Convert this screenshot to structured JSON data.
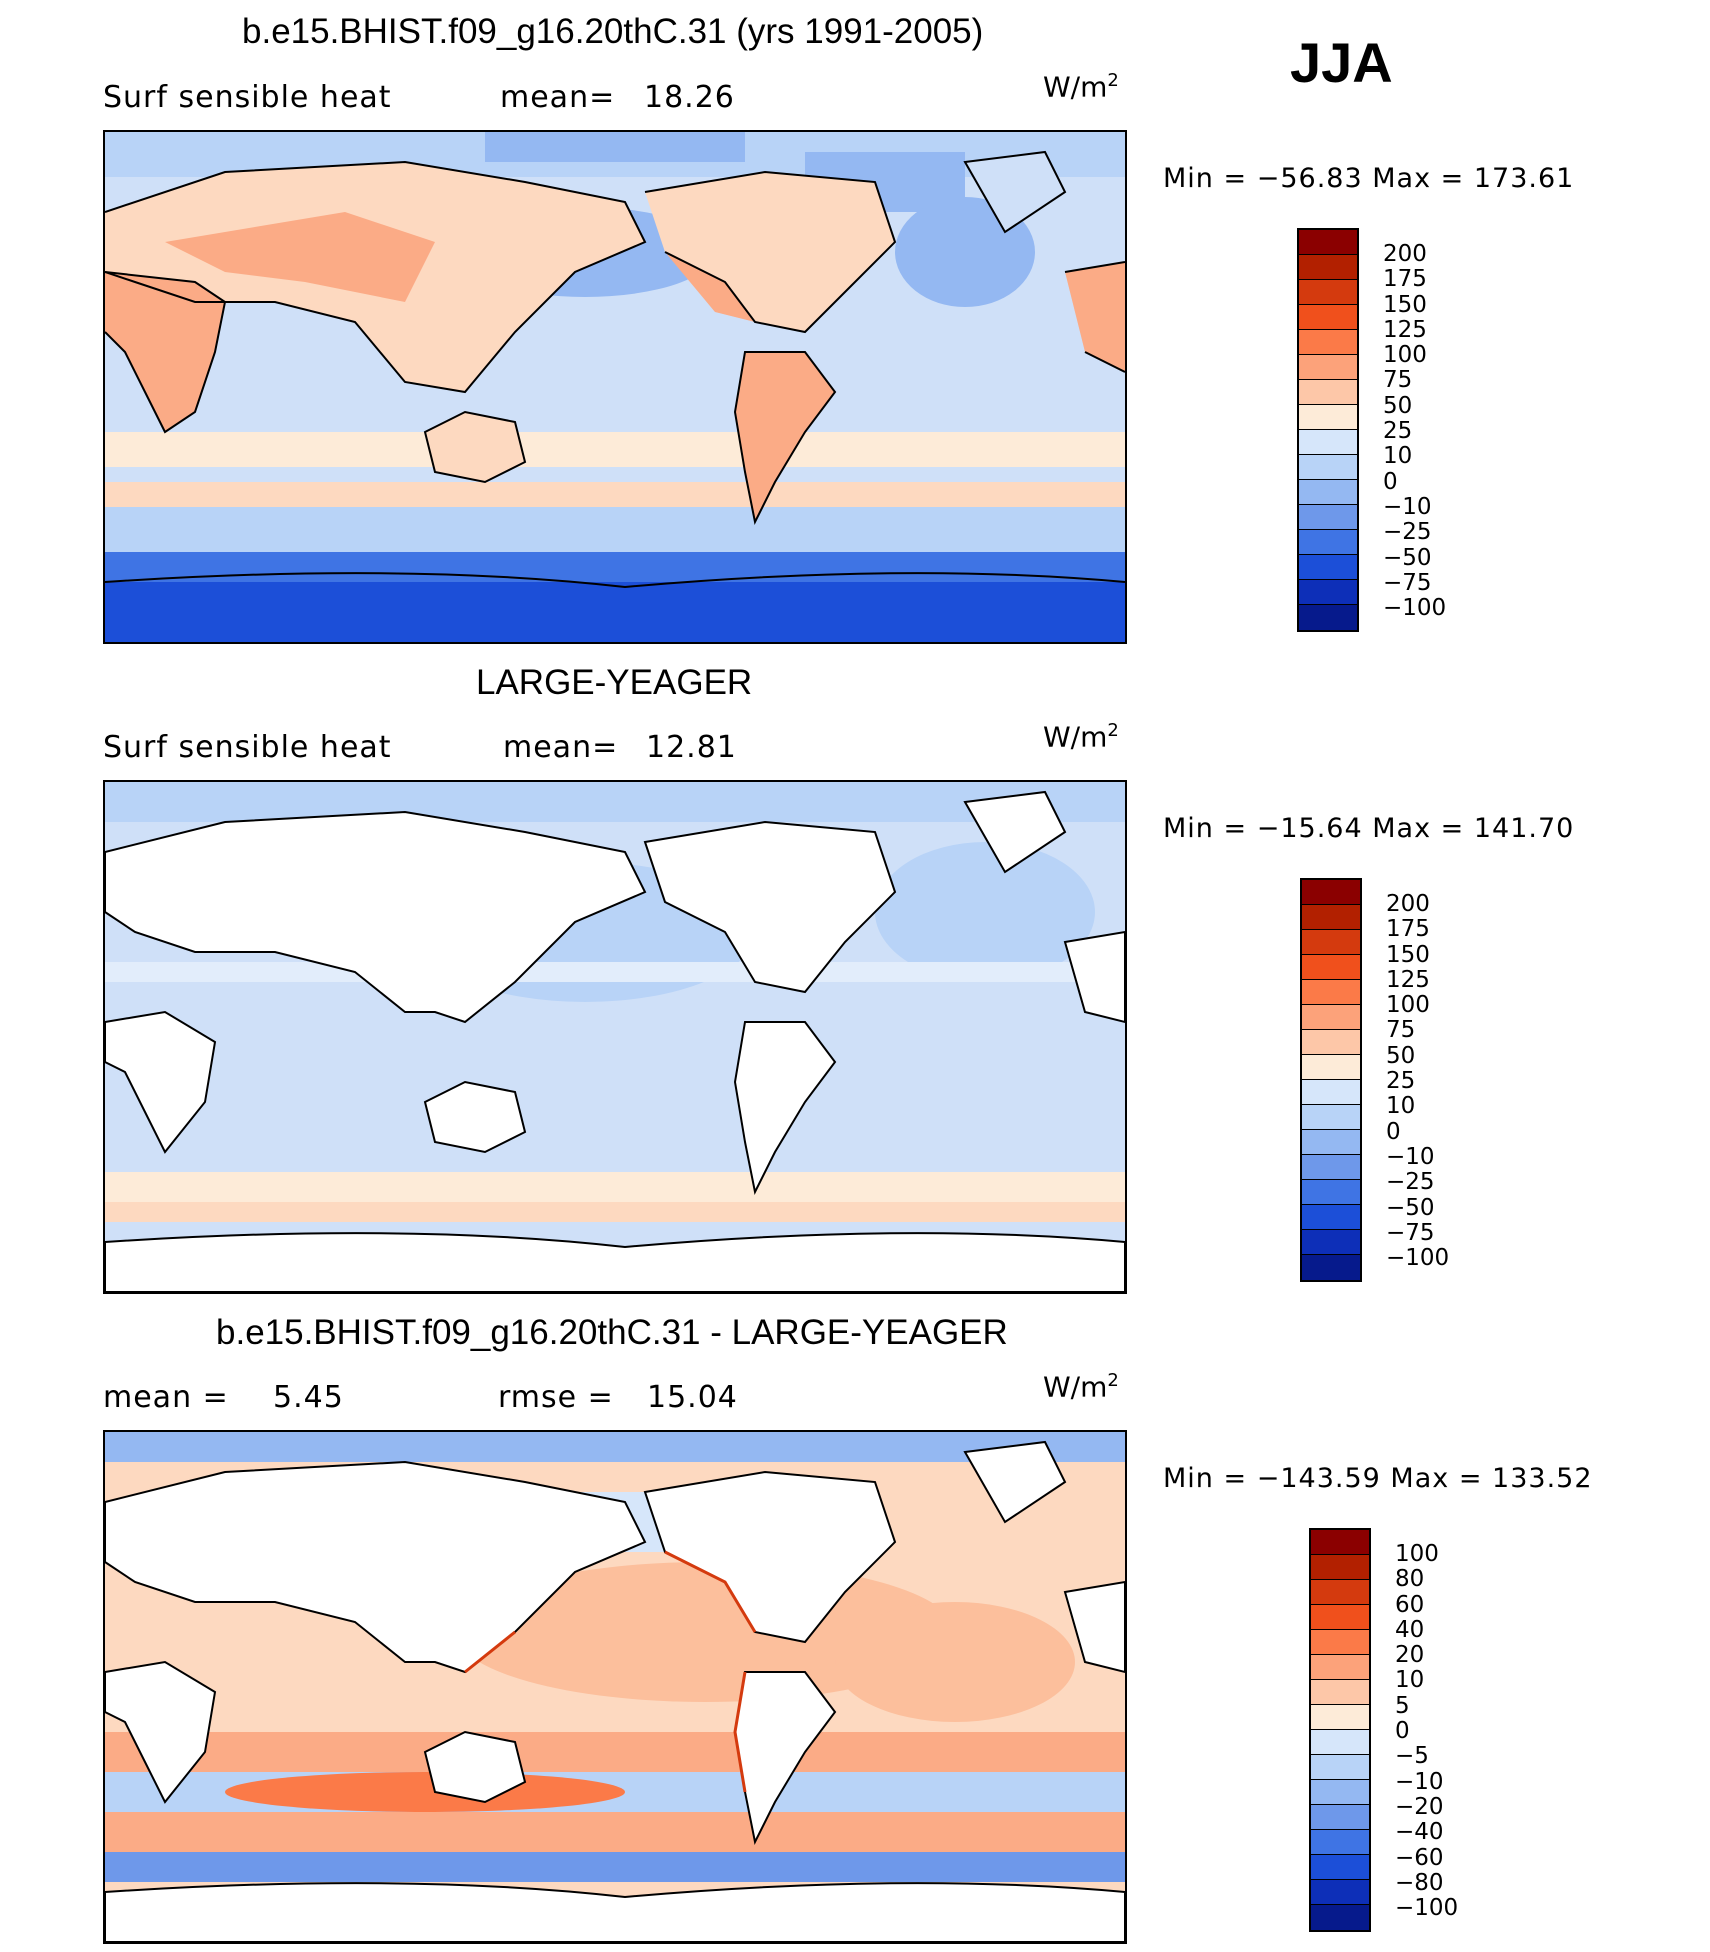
{
  "season": "JJA",
  "panels": [
    {
      "title": "b.e15.BHIST.f09_g16.20thC.31 (yrs 1991-2005)",
      "variable": "Surf  sensible  heat",
      "stat_label": "mean=",
      "stat_value": "18.26",
      "units": "W/m",
      "units_sup": "2",
      "min_label": "Min  =",
      "min_value": "−56.83",
      "max_label": "Max  =",
      "max_value": "173.61",
      "colorbar_labels": [
        "200",
        "175",
        "150",
        "125",
        "100",
        "75",
        "50",
        "25",
        "10",
        "0",
        "−10",
        "−25",
        "−50",
        "−75",
        "−100"
      ],
      "colorbar_colors": [
        "#8b0000",
        "#b22000",
        "#d43a0e",
        "#f0501c",
        "#fb7a48",
        "#fca27a",
        "#fdc7a8",
        "#fdebd8",
        "#d6e6fa",
        "#b8d3f7",
        "#94b8f2",
        "#6e98ea",
        "#3f74e4",
        "#1c4fd8",
        "#0d2fb8",
        "#061a8c"
      ]
    },
    {
      "title": "LARGE-YEAGER",
      "variable": "Surf  sensible  heat",
      "stat_label": "mean=",
      "stat_value": "12.81",
      "units": "W/m",
      "units_sup": "2",
      "min_label": "Min  =",
      "min_value": "−15.64",
      "max_label": "Max  =",
      "max_value": "141.70",
      "colorbar_labels": [
        "200",
        "175",
        "150",
        "125",
        "100",
        "75",
        "50",
        "25",
        "10",
        "0",
        "−10",
        "−25",
        "−50",
        "−75",
        "−100"
      ],
      "colorbar_colors": [
        "#8b0000",
        "#b22000",
        "#d43a0e",
        "#f0501c",
        "#fb7a48",
        "#fca27a",
        "#fdc7a8",
        "#fdebd8",
        "#d6e6fa",
        "#b8d3f7",
        "#94b8f2",
        "#6e98ea",
        "#3f74e4",
        "#1c4fd8",
        "#0d2fb8",
        "#061a8c"
      ]
    },
    {
      "title": "b.e15.BHIST.f09_g16.20thC.31 - LARGE-YEAGER",
      "variable": "mean  =",
      "stat_label": "rmse  =",
      "mean_value": "5.45",
      "stat_value": "15.04",
      "units": "W/m",
      "units_sup": "2",
      "min_label": "Min  =",
      "min_value": "−143.59",
      "max_label": "Max  =",
      "max_value": "133.52",
      "colorbar_labels": [
        "100",
        "80",
        "60",
        "40",
        "20",
        "10",
        "5",
        "0",
        "−5",
        "−10",
        "−20",
        "−40",
        "−60",
        "−80",
        "−100"
      ],
      "colorbar_colors": [
        "#8b0000",
        "#b22000",
        "#d43a0e",
        "#f0501c",
        "#fb7a48",
        "#fca27a",
        "#fdc7a8",
        "#fdebd8",
        "#d6e6fa",
        "#b8d3f7",
        "#94b8f2",
        "#6e98ea",
        "#3f74e4",
        "#1c4fd8",
        "#0d2fb8",
        "#061a8c"
      ]
    }
  ],
  "colors": {
    "land_white": "#ffffff",
    "ocean_light_blue": "#cfe0f8",
    "ocean_mid_blue": "#9cbcf0",
    "light_orange": "#fdd9c0",
    "mid_orange": "#fbab86",
    "strong_blue": "#2a5fe0",
    "coastline": "#000000"
  }
}
